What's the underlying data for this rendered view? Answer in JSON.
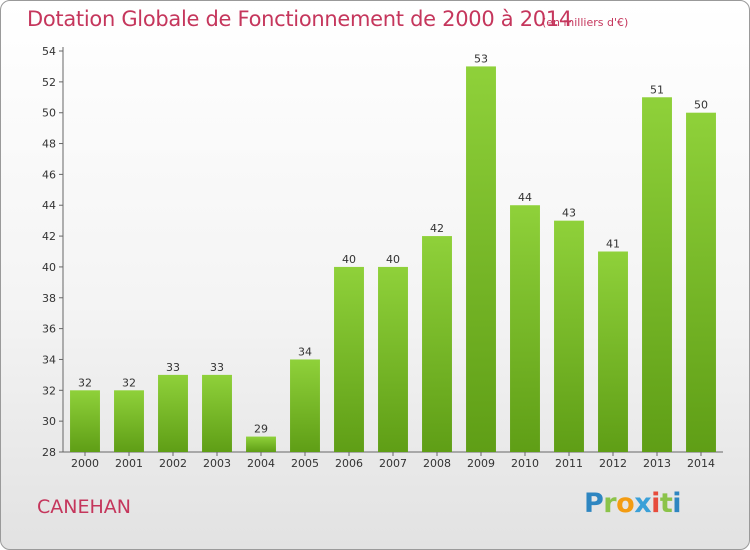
{
  "chart_data": {
    "type": "bar",
    "title": "Dotation Globale de Fonctionnement de 2000 à 2014",
    "unit_label": "(en milliers d'€)",
    "categories": [
      "2000",
      "2001",
      "2002",
      "2003",
      "2004",
      "2005",
      "2006",
      "2007",
      "2008",
      "2009",
      "2010",
      "2011",
      "2012",
      "2013",
      "2014"
    ],
    "values": [
      32,
      32,
      33,
      33,
      29,
      34,
      40,
      40,
      42,
      53,
      44,
      43,
      41,
      51,
      50
    ],
    "ylim": [
      28,
      54
    ],
    "yticks": [
      28,
      30,
      32,
      34,
      36,
      38,
      40,
      42,
      44,
      46,
      48,
      50,
      52,
      54
    ],
    "grid": false,
    "bar_color": "#7cbe2a",
    "bar_color_dark": "#5a9a14"
  },
  "footer": {
    "town": "CANEHAN",
    "logo_letters": [
      {
        "ch": "P",
        "color": "#2e86c1"
      },
      {
        "ch": "r",
        "color": "#8bc34a"
      },
      {
        "ch": "o",
        "color": "#f39c12"
      },
      {
        "ch": "x",
        "color": "#3aa0d8"
      },
      {
        "ch": "i",
        "color": "#e74c3c"
      },
      {
        "ch": "t",
        "color": "#8bc34a"
      },
      {
        "ch": "i",
        "color": "#2e86c1"
      }
    ]
  },
  "colors": {
    "title": "#c5365c",
    "axis": "#555555"
  }
}
